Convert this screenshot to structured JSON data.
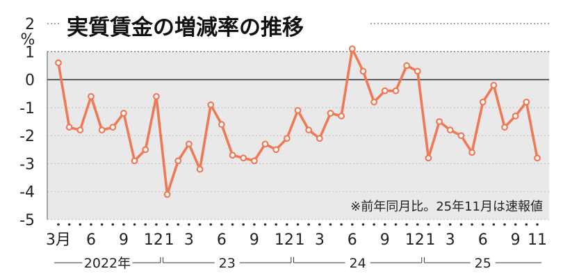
{
  "chart_data": {
    "type": "line",
    "title": "実質賃金の増減率の推移",
    "ylabel": "%",
    "note": "※前年同月比。25年11月は速報値",
    "ylim": [
      -5,
      2
    ],
    "yticks": [
      "2",
      "1",
      "0",
      "-1",
      "-2",
      "-3",
      "-4",
      "-5"
    ],
    "xtick_labels": [
      {
        "i": 0,
        "label": "3月"
      },
      {
        "i": 3,
        "label": "6"
      },
      {
        "i": 6,
        "label": "9"
      },
      {
        "i": 9,
        "label": "12"
      },
      {
        "i": 10,
        "label": "1"
      },
      {
        "i": 12,
        "label": "3"
      },
      {
        "i": 15,
        "label": "6"
      },
      {
        "i": 18,
        "label": "9"
      },
      {
        "i": 21,
        "label": "12"
      },
      {
        "i": 22,
        "label": "1"
      },
      {
        "i": 24,
        "label": "3"
      },
      {
        "i": 27,
        "label": "6"
      },
      {
        "i": 30,
        "label": "9"
      },
      {
        "i": 33,
        "label": "12"
      },
      {
        "i": 34,
        "label": "1"
      },
      {
        "i": 36,
        "label": "3"
      },
      {
        "i": 39,
        "label": "6"
      },
      {
        "i": 42,
        "label": "9"
      },
      {
        "i": 44,
        "label": "11"
      }
    ],
    "years": [
      {
        "label": "2022年",
        "from": 0,
        "to": 9
      },
      {
        "label": "23",
        "from": 10,
        "to": 21
      },
      {
        "label": "24",
        "from": 22,
        "to": 33
      },
      {
        "label": "25",
        "from": 34,
        "to": 44
      }
    ],
    "months": [
      "2022-03",
      "2022-04",
      "2022-05",
      "2022-06",
      "2022-07",
      "2022-08",
      "2022-09",
      "2022-10",
      "2022-11",
      "2022-12",
      "2023-01",
      "2023-02",
      "2023-03",
      "2023-04",
      "2023-05",
      "2023-06",
      "2023-07",
      "2023-08",
      "2023-09",
      "2023-10",
      "2023-11",
      "2023-12",
      "2024-01",
      "2024-02",
      "2024-03",
      "2024-04",
      "2024-05",
      "2024-06",
      "2024-07",
      "2024-08",
      "2024-09",
      "2024-10",
      "2024-11",
      "2024-12",
      "2025-01",
      "2025-02",
      "2025-03",
      "2025-04",
      "2025-05",
      "2025-06",
      "2025-07",
      "2025-08",
      "2025-09",
      "2025-10",
      "2025-11"
    ],
    "values": [
      0.6,
      -1.7,
      -1.8,
      -0.6,
      -1.8,
      -1.7,
      -1.2,
      -2.9,
      -2.5,
      -0.6,
      -4.1,
      -2.9,
      -2.3,
      -3.2,
      -0.9,
      -1.6,
      -2.7,
      -2.8,
      -2.9,
      -2.3,
      -2.5,
      -2.1,
      -1.1,
      -1.8,
      -2.1,
      -1.2,
      -1.3,
      1.1,
      0.3,
      -0.8,
      -0.4,
      -0.4,
      0.5,
      0.3,
      -2.8,
      -1.5,
      -1.8,
      -2.0,
      -2.6,
      -0.8,
      -0.2,
      -1.7,
      -1.3,
      -0.8,
      -2.8
    ],
    "line_color": "#f07854",
    "marker_fill": "#ffffff",
    "plot_bg": "#e9e9e9",
    "grid": true
  }
}
